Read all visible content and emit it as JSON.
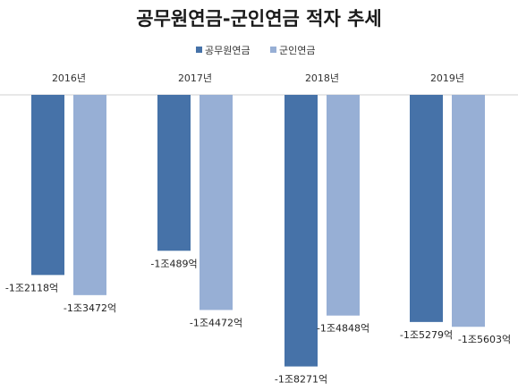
{
  "chart_data": {
    "type": "bar",
    "title": "공무원연금-군인연금 적자 추세",
    "categories": [
      "2016년",
      "2017년",
      "2018년",
      "2019년"
    ],
    "unit": "억원",
    "series": [
      {
        "name": "공무원연금",
        "color": "#4672A8",
        "values": [
          -12118,
          -10489,
          -18271,
          -15279
        ],
        "labels": [
          "-1조2118억",
          "-1조489억",
          "-1조8271억",
          "-1조5279억"
        ]
      },
      {
        "name": "군인연금",
        "color": "#97AFD5",
        "values": [
          -13472,
          -14472,
          -14848,
          -15603
        ],
        "labels": [
          "-1조3472억",
          "-1조4472억",
          "-1조4848억",
          "-1조5603억"
        ]
      }
    ],
    "ylim": [
      -19500,
      0
    ],
    "grid": false,
    "legend_position": "top"
  }
}
